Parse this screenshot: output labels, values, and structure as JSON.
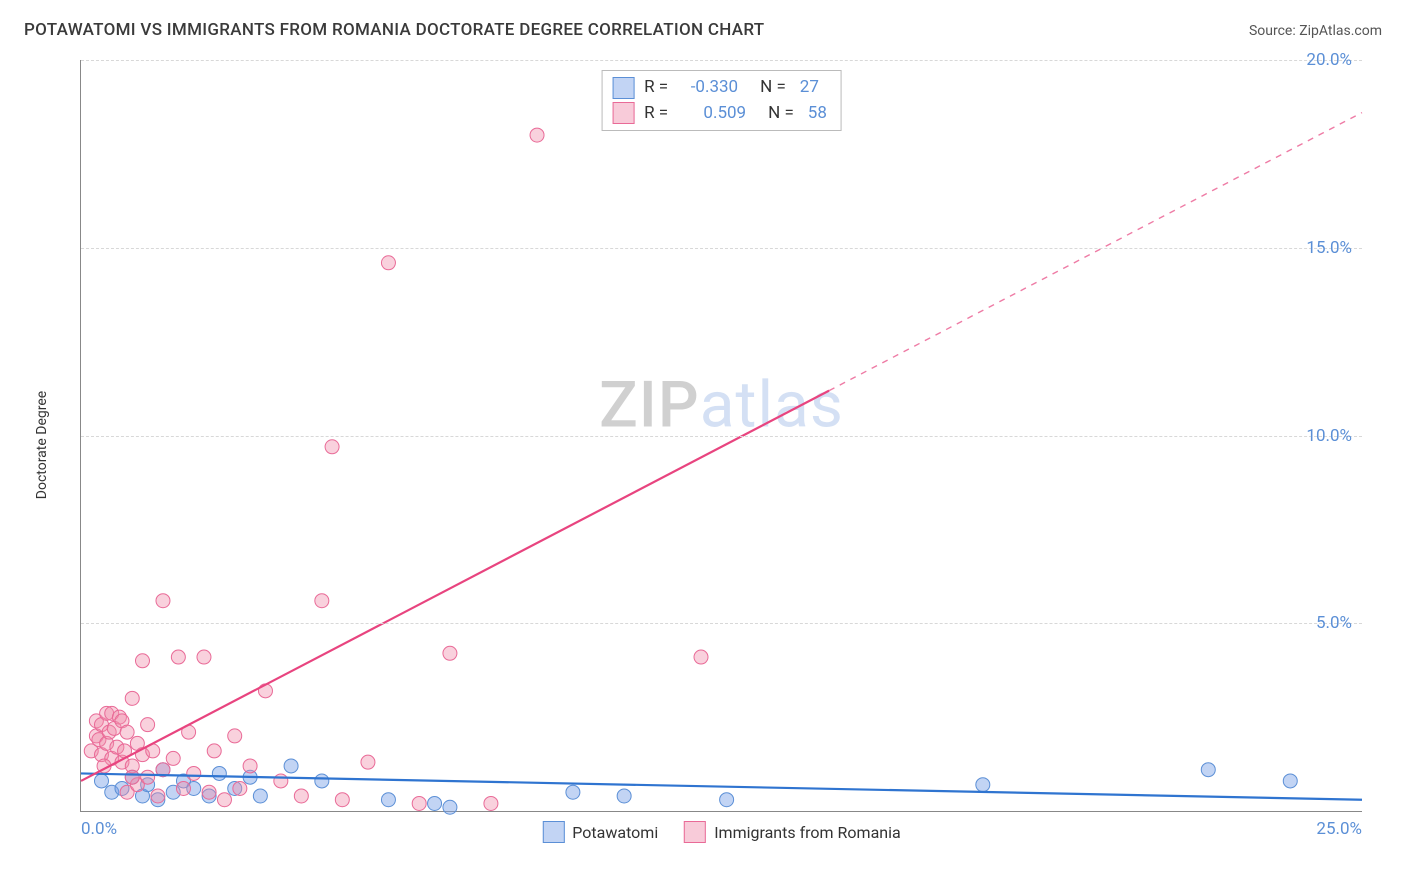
{
  "meta": {
    "title": "POTAWATOMI VS IMMIGRANTS FROM ROMANIA DOCTORATE DEGREE CORRELATION CHART",
    "source_label": "Source:",
    "source_name": "ZipAtlas.com",
    "watermark_a": "ZIP",
    "watermark_b": "atlas"
  },
  "chart": {
    "type": "scatter-with-regression",
    "y_axis_label": "Doctorate Degree",
    "x_range": [
      0,
      25
    ],
    "y_range": [
      0,
      20
    ],
    "x_ticks": [
      {
        "value": 0.0,
        "label": "0.0%"
      },
      {
        "value": 25.0,
        "label": "25.0%"
      }
    ],
    "y_ticks": [
      {
        "value": 5.0,
        "label": "5.0%"
      },
      {
        "value": 10.0,
        "label": "10.0%"
      },
      {
        "value": 15.0,
        "label": "15.0%"
      },
      {
        "value": 20.0,
        "label": "20.0%"
      }
    ],
    "grid_color": "#d8d8d8",
    "background": "#ffffff",
    "axis_color": "#888888",
    "tick_font_color": "#5b8fd6",
    "tick_font_size_pt": 13,
    "series": [
      {
        "id": "blue",
        "label": "Potawatomi",
        "marker_color": "rgba(120,160,230,0.45)",
        "marker_border": "#5b8fd6",
        "marker_radius": 7,
        "line_color": "#2f74d0",
        "line_width": 2.2,
        "regression": {
          "x1": 0,
          "y1": 1.0,
          "x2": 25,
          "y2": 0.3,
          "dashed_from": null
        },
        "R": "-0.330",
        "N": "27",
        "points": [
          [
            0.4,
            0.8
          ],
          [
            0.6,
            0.5
          ],
          [
            0.8,
            0.6
          ],
          [
            1.0,
            0.9
          ],
          [
            1.2,
            0.4
          ],
          [
            1.3,
            0.7
          ],
          [
            1.5,
            0.3
          ],
          [
            1.6,
            1.1
          ],
          [
            1.8,
            0.5
          ],
          [
            2.0,
            0.8
          ],
          [
            2.2,
            0.6
          ],
          [
            2.5,
            0.4
          ],
          [
            2.7,
            1.0
          ],
          [
            3.0,
            0.6
          ],
          [
            3.3,
            0.9
          ],
          [
            3.5,
            0.4
          ],
          [
            4.1,
            1.2
          ],
          [
            4.7,
            0.8
          ],
          [
            6.0,
            0.3
          ],
          [
            6.9,
            0.2
          ],
          [
            7.2,
            0.1
          ],
          [
            9.6,
            0.5
          ],
          [
            10.6,
            0.4
          ],
          [
            12.6,
            0.3
          ],
          [
            17.6,
            0.7
          ],
          [
            22.0,
            1.1
          ],
          [
            23.6,
            0.8
          ]
        ]
      },
      {
        "id": "pink",
        "label": "Immigrants from Romania",
        "marker_color": "rgba(240,140,170,0.40)",
        "marker_border": "#e96a97",
        "marker_radius": 7,
        "line_color": "#e8447f",
        "line_width": 2.2,
        "regression": {
          "x1": 0,
          "y1": 0.8,
          "x2": 25,
          "y2": 18.6,
          "dashed_from": 14.6
        },
        "R": "0.509",
        "N": "58",
        "points": [
          [
            0.2,
            1.6
          ],
          [
            0.3,
            2.0
          ],
          [
            0.3,
            2.4
          ],
          [
            0.35,
            1.9
          ],
          [
            0.4,
            2.3
          ],
          [
            0.4,
            1.5
          ],
          [
            0.5,
            2.6
          ],
          [
            0.5,
            1.8
          ],
          [
            0.55,
            2.1
          ],
          [
            0.6,
            2.6
          ],
          [
            0.6,
            1.4
          ],
          [
            0.65,
            2.2
          ],
          [
            0.7,
            1.7
          ],
          [
            0.75,
            2.5
          ],
          [
            0.8,
            1.3
          ],
          [
            0.8,
            2.4
          ],
          [
            0.85,
            1.6
          ],
          [
            0.9,
            2.1
          ],
          [
            0.9,
            0.5
          ],
          [
            1.0,
            1.2
          ],
          [
            1.0,
            3.0
          ],
          [
            1.1,
            1.8
          ],
          [
            1.1,
            0.7
          ],
          [
            1.2,
            4.0
          ],
          [
            1.2,
            1.5
          ],
          [
            1.3,
            2.3
          ],
          [
            1.3,
            0.9
          ],
          [
            1.4,
            1.6
          ],
          [
            1.5,
            0.4
          ],
          [
            1.6,
            5.6
          ],
          [
            1.6,
            1.1
          ],
          [
            1.8,
            1.4
          ],
          [
            1.9,
            4.1
          ],
          [
            2.0,
            0.6
          ],
          [
            2.1,
            2.1
          ],
          [
            2.2,
            1.0
          ],
          [
            2.4,
            4.1
          ],
          [
            2.5,
            0.5
          ],
          [
            2.6,
            1.6
          ],
          [
            2.8,
            0.3
          ],
          [
            3.0,
            2.0
          ],
          [
            3.1,
            0.6
          ],
          [
            3.3,
            1.2
          ],
          [
            3.6,
            3.2
          ],
          [
            3.9,
            0.8
          ],
          [
            4.3,
            0.4
          ],
          [
            4.7,
            5.6
          ],
          [
            4.9,
            9.7
          ],
          [
            5.1,
            0.3
          ],
          [
            5.6,
            1.3
          ],
          [
            6.0,
            14.6
          ],
          [
            6.6,
            0.2
          ],
          [
            7.2,
            4.2
          ],
          [
            8.0,
            0.2
          ],
          [
            8.9,
            18.0
          ],
          [
            12.1,
            4.1
          ],
          [
            1.0,
            0.9
          ],
          [
            0.45,
            1.2
          ]
        ]
      }
    ]
  }
}
